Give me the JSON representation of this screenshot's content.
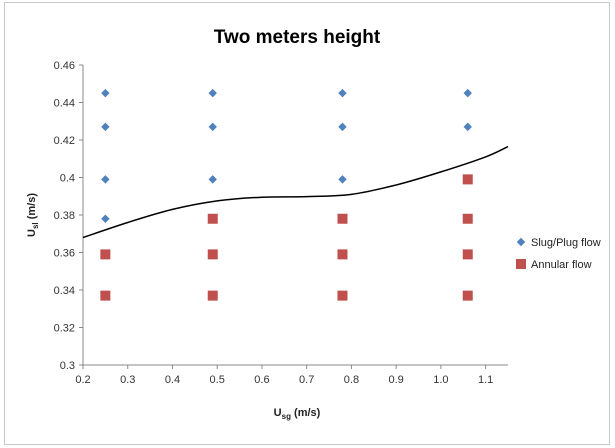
{
  "chart_data": {
    "type": "scatter",
    "title": "Two meters height",
    "xlabel_main": "U",
    "xlabel_sub": "sg",
    "xlabel_unit": " (m/s)",
    "ylabel_main": "U",
    "ylabel_sub": "sl",
    "ylabel_unit": " (m/s)",
    "xlim": [
      0.2,
      1.15
    ],
    "ylim": [
      0.3,
      0.46
    ],
    "x_ticks": [
      "0.2",
      "0.3",
      "0.4",
      "0.5",
      "0.6",
      "0.7",
      "0.8",
      "0.9",
      "1.0",
      "1.1"
    ],
    "y_ticks": [
      "0.3",
      "0.32",
      "0.34",
      "0.36",
      "0.38",
      "0.4",
      "0.42",
      "0.44",
      "0.46"
    ],
    "legend_position": "right",
    "series": [
      {
        "name": "Slug/Plug flow",
        "color": "#4f81bd",
        "marker": "diamond",
        "points": [
          [
            0.25,
            0.445
          ],
          [
            0.25,
            0.427
          ],
          [
            0.25,
            0.399
          ],
          [
            0.25,
            0.378
          ],
          [
            0.49,
            0.445
          ],
          [
            0.49,
            0.427
          ],
          [
            0.49,
            0.399
          ],
          [
            0.78,
            0.445
          ],
          [
            0.78,
            0.427
          ],
          [
            0.78,
            0.399
          ],
          [
            1.06,
            0.445
          ],
          [
            1.06,
            0.427
          ]
        ]
      },
      {
        "name": "Annular flow",
        "color": "#c0504d",
        "marker": "square",
        "points": [
          [
            0.25,
            0.359
          ],
          [
            0.25,
            0.337
          ],
          [
            0.49,
            0.378
          ],
          [
            0.49,
            0.359
          ],
          [
            0.49,
            0.337
          ],
          [
            0.78,
            0.378
          ],
          [
            0.78,
            0.359
          ],
          [
            0.78,
            0.337
          ],
          [
            1.06,
            0.399
          ],
          [
            1.06,
            0.378
          ],
          [
            1.06,
            0.359
          ],
          [
            1.06,
            0.337
          ]
        ]
      }
    ],
    "boundary_curve": {
      "color": "#000000",
      "points": [
        [
          0.2,
          0.368
        ],
        [
          0.3,
          0.376
        ],
        [
          0.4,
          0.383
        ],
        [
          0.5,
          0.3875
        ],
        [
          0.6,
          0.3895
        ],
        [
          0.7,
          0.3898
        ],
        [
          0.8,
          0.391
        ],
        [
          0.9,
          0.396
        ],
        [
          1.0,
          0.403
        ],
        [
          1.1,
          0.411
        ],
        [
          1.15,
          0.4165
        ]
      ]
    }
  }
}
